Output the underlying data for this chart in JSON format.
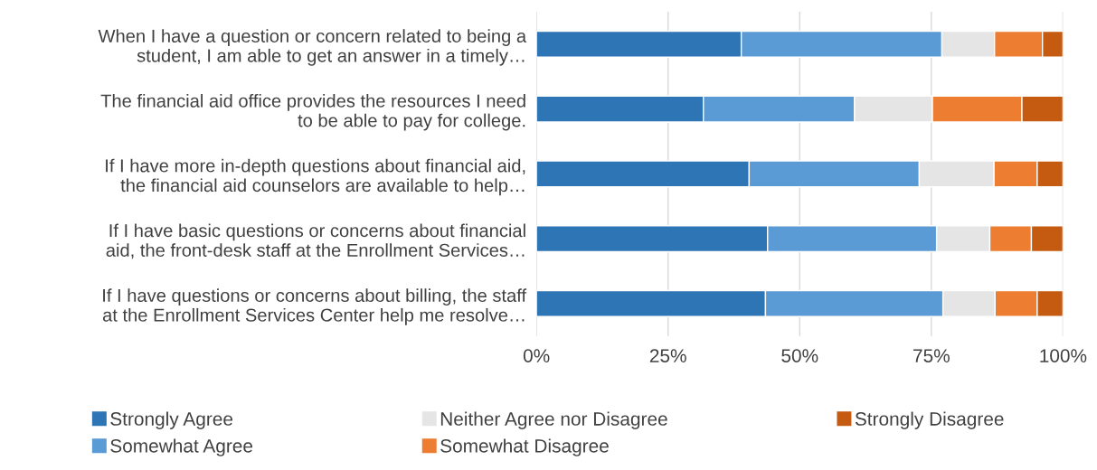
{
  "chart_data": {
    "type": "bar",
    "orientation": "horizontal",
    "stacked": true,
    "categories": [
      "When I have a question or concern related to being a\nstudent, I am able to get an answer in a timely…",
      "The financial aid office provides the resources I need\nto be able to pay for college.",
      "If I have more in-depth questions about financial aid,\nthe financial aid counselors are available to help…",
      "If I have basic questions or concerns about financial\naid, the front-desk staff at the Enrollment Services…",
      "If I have questions or concerns about billing, the staff\nat the Enrollment Services Center help me resolve…"
    ],
    "series": [
      {
        "name": "Strongly Agree",
        "color": "#2e75b6",
        "values": [
          38.9,
          31.7,
          40.4,
          43.9,
          43.5
        ]
      },
      {
        "name": "Somewhat Agree",
        "color": "#5b9bd5",
        "values": [
          38.1,
          28.7,
          32.3,
          32.1,
          33.7
        ]
      },
      {
        "name": "Neither Agree nor Disagree",
        "color": "#e5e5e5",
        "values": [
          10.0,
          14.8,
          14.2,
          10.1,
          9.9
        ]
      },
      {
        "name": "Somewhat Disagree",
        "color": "#ed7d31",
        "values": [
          9.1,
          17.0,
          8.2,
          7.9,
          8.0
        ]
      },
      {
        "name": "Strongly Disagree",
        "color": "#c55a11",
        "values": [
          3.9,
          7.8,
          4.9,
          6.0,
          4.9
        ]
      }
    ],
    "xlim": [
      0,
      100
    ],
    "xticks": [
      {
        "value": 0,
        "label": "0%"
      },
      {
        "value": 25,
        "label": "25%"
      },
      {
        "value": 50,
        "label": "50%"
      },
      {
        "value": 75,
        "label": "75%"
      },
      {
        "value": 100,
        "label": "100%"
      }
    ],
    "grid": "x",
    "legend": "bottom"
  }
}
